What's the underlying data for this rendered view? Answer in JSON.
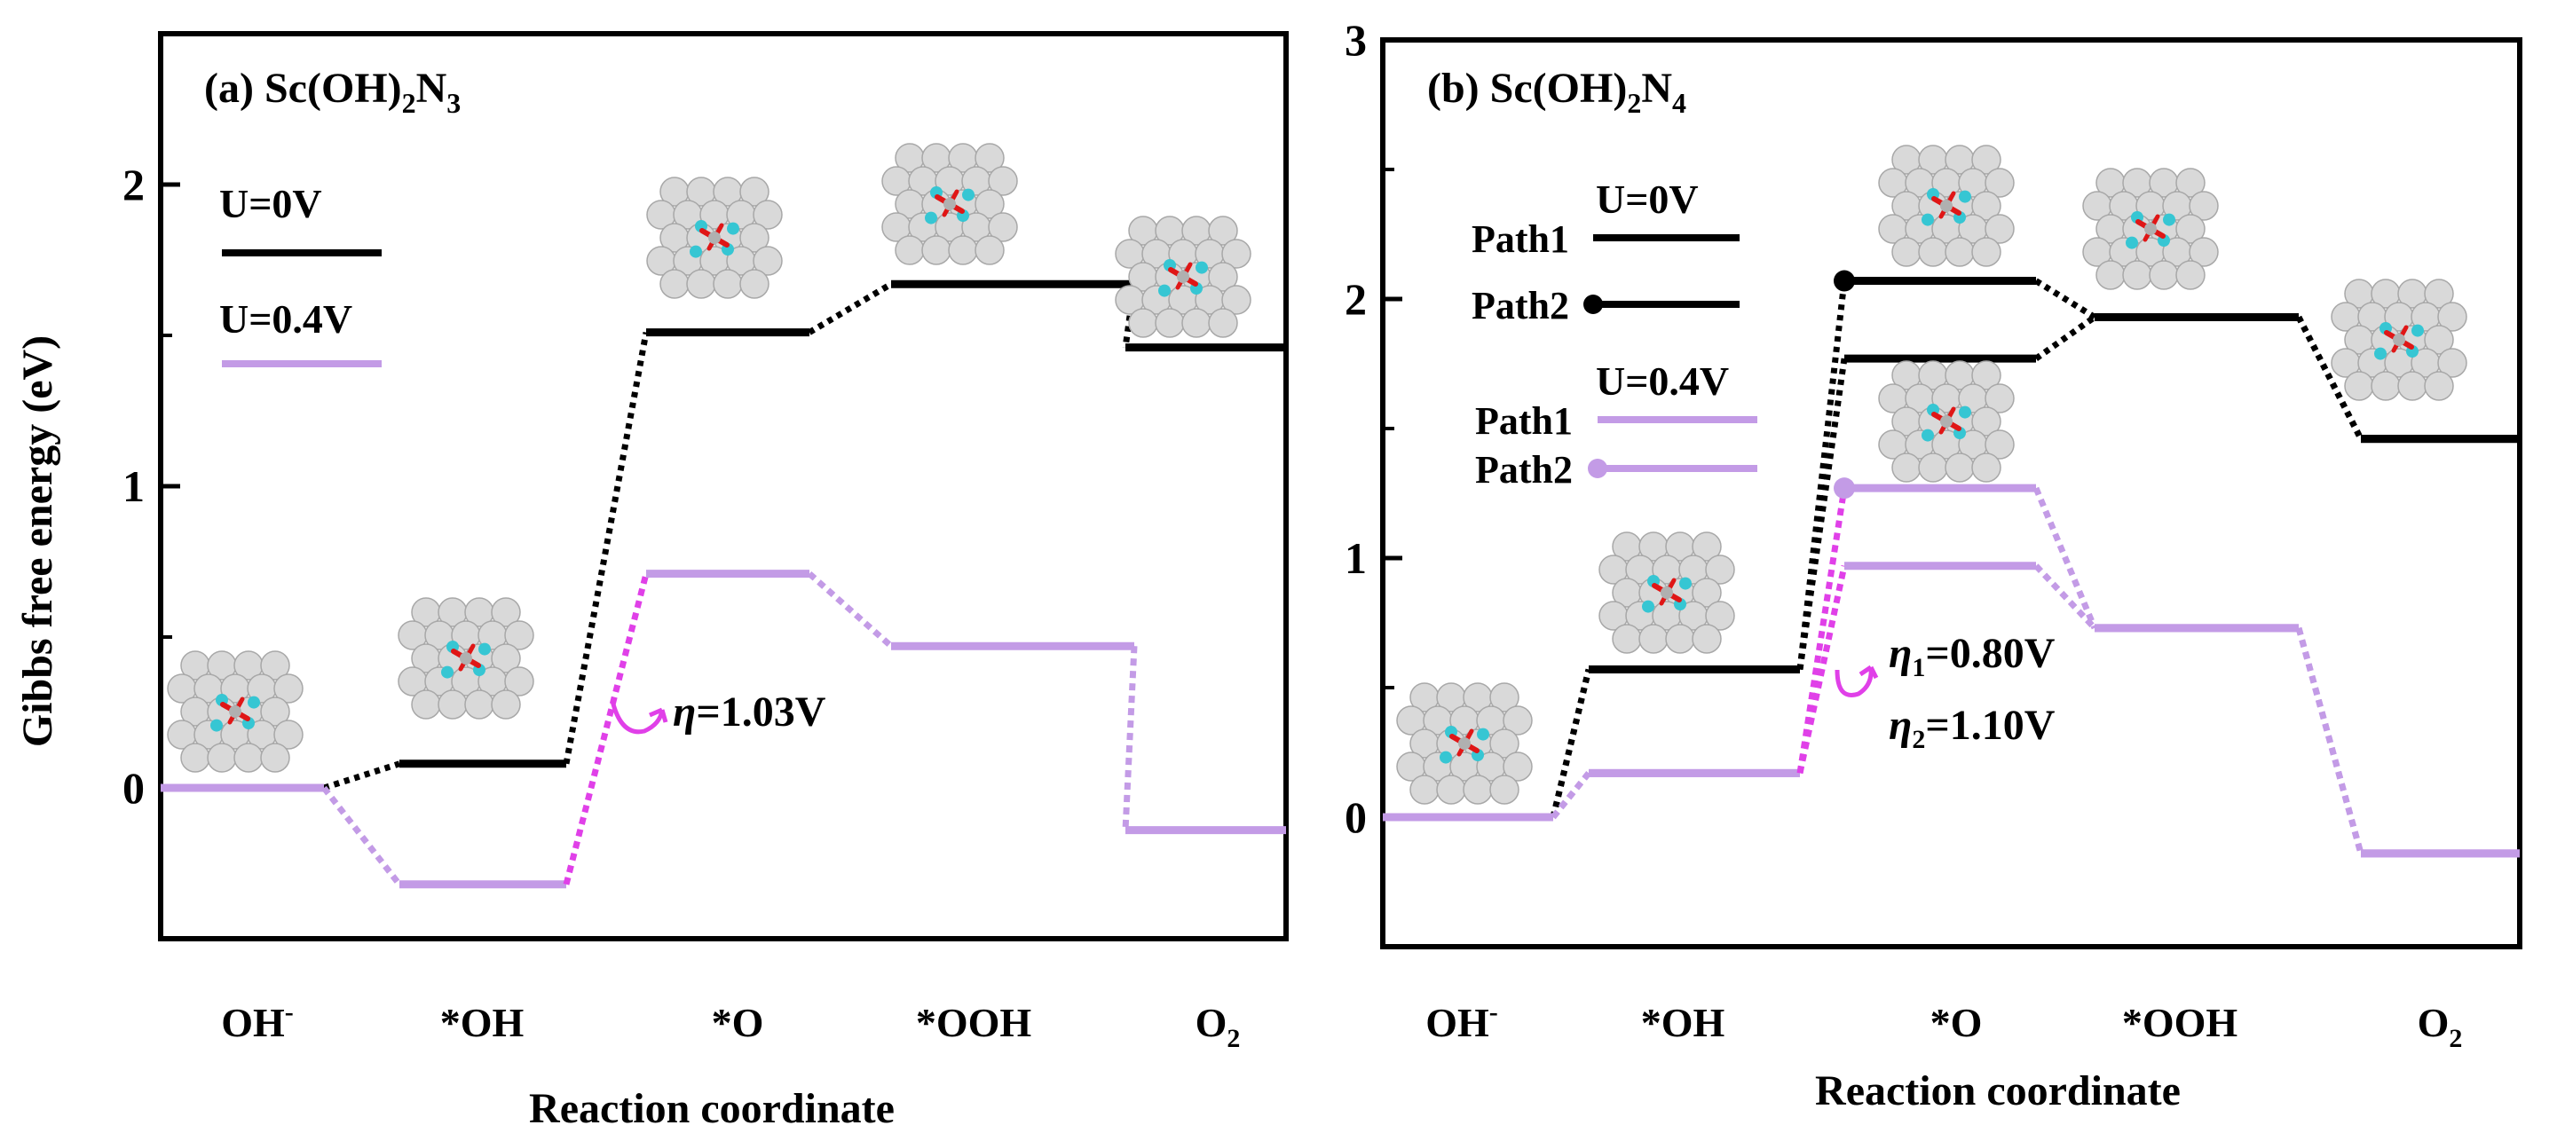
{
  "figure": {
    "ylabel": "Gibbs free energy (eV)",
    "xlabel": "Reaction coordinate"
  },
  "colors": {
    "u0": "#000000",
    "u04": "#c39be6",
    "eta_arrow": "#e040e8",
    "atom_white": "#d9d9d9",
    "atom_cyan": "#36c6d3",
    "atom_red": "#e01616"
  },
  "chart_data": [
    {
      "type": "line",
      "panel_label": "(a) Sc(OH)",
      "panel_label_sub1": "2",
      "panel_label_mid": "N",
      "panel_label_sub2": "3",
      "categories": [
        "OH-",
        "*OH",
        "*O",
        "*OOH",
        "O2"
      ],
      "category_labels": [
        {
          "main": "OH",
          "sup": "-",
          "sub": ""
        },
        {
          "main": "*OH",
          "sup": "",
          "sub": ""
        },
        {
          "main": "*O",
          "sup": "",
          "sub": ""
        },
        {
          "main": "*OOH",
          "sup": "",
          "sub": ""
        },
        {
          "main": "O",
          "sup": "",
          "sub": "2"
        }
      ],
      "ylim": [
        -0.5,
        2.5
      ],
      "yticks": [
        0,
        1,
        2
      ],
      "grid": false,
      "series": [
        {
          "name": "U=0V",
          "style": "u0",
          "values": [
            0.0,
            0.08,
            1.51,
            1.67,
            1.46
          ]
        },
        {
          "name": "U=0.4V",
          "style": "u04",
          "values": [
            0.0,
            -0.32,
            0.71,
            0.47,
            -0.14
          ]
        }
      ],
      "legend": [
        {
          "label": "U=0V",
          "entries": [
            {
              "label": "",
              "style": "u0",
              "dot": false
            }
          ]
        },
        {
          "label": "U=0.4V",
          "entries": [
            {
              "label": "",
              "style": "u04",
              "dot": false
            }
          ]
        }
      ],
      "annotations": [
        {
          "prefix": "η",
          "sub": "",
          "text": "=1.03V"
        }
      ]
    },
    {
      "type": "line",
      "panel_label": "(b) Sc(OH)",
      "panel_label_sub1": "2",
      "panel_label_mid": "N",
      "panel_label_sub2": "4",
      "categories": [
        "OH-",
        "*OH",
        "*O",
        "*OOH",
        "O2"
      ],
      "category_labels": [
        {
          "main": "OH",
          "sup": "-",
          "sub": ""
        },
        {
          "main": "*OH",
          "sup": "",
          "sub": ""
        },
        {
          "main": "*O",
          "sup": "",
          "sub": ""
        },
        {
          "main": "*OOH",
          "sup": "",
          "sub": ""
        },
        {
          "main": "O",
          "sup": "",
          "sub": "2"
        }
      ],
      "ylim": [
        -0.5,
        3.0
      ],
      "yticks": [
        0,
        1,
        2,
        3
      ],
      "grid": false,
      "series": [
        {
          "name": "Path1",
          "group": "U=0V",
          "style": "u0",
          "values": [
            0.0,
            0.57,
            1.77,
            1.93,
            1.46
          ]
        },
        {
          "name": "Path2",
          "group": "U=0V",
          "style": "u0",
          "dot_at": 2,
          "values": [
            0.0,
            0.57,
            2.07,
            1.93,
            1.46
          ]
        },
        {
          "name": "Path1",
          "group": "U=0.4V",
          "style": "u04",
          "values": [
            0.0,
            0.17,
            0.97,
            0.73,
            -0.14
          ]
        },
        {
          "name": "Path2",
          "group": "U=0.4V",
          "style": "u04",
          "dot_at": 2,
          "values": [
            0.0,
            0.17,
            1.27,
            0.73,
            -0.14
          ]
        }
      ],
      "legend": [
        {
          "label": "U=0V",
          "entries": [
            {
              "label": "Path1",
              "style": "u0",
              "dot": false
            },
            {
              "label": "Path2",
              "style": "u0",
              "dot": true
            }
          ]
        },
        {
          "label": "U=0.4V",
          "entries": [
            {
              "label": "Path1",
              "style": "u04",
              "dot": false
            },
            {
              "label": "Path2",
              "style": "u04",
              "dot": true
            }
          ]
        }
      ],
      "annotations": [
        {
          "prefix": "η",
          "sub": "1",
          "text": "=0.80V"
        },
        {
          "prefix": "η",
          "sub": "2",
          "text": "=1.10V"
        }
      ]
    }
  ]
}
